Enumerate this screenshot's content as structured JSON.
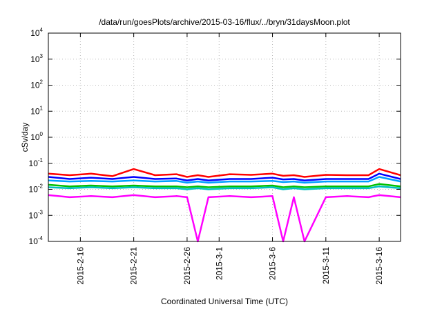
{
  "chart_data": {
    "type": "line",
    "title": "/data/run/goesPlots/archive/2015-03-16/flux/../bryn/31daysMoon.plot",
    "xlabel": "Coordinated Universal Time (UTC)",
    "ylabel": "cSv/day",
    "yscale": "log",
    "ylim": [
      0.0001,
      10000
    ],
    "xlim": [
      "2015-02-13",
      "2015-03-18"
    ],
    "grid": true,
    "legend": "none",
    "y_ticks": [
      {
        "base": "10",
        "exp": "-4",
        "value": 0.0001
      },
      {
        "base": "10",
        "exp": "-3",
        "value": 0.001
      },
      {
        "base": "10",
        "exp": "-2",
        "value": 0.01
      },
      {
        "base": "10",
        "exp": "-1",
        "value": 0.1
      },
      {
        "base": "10",
        "exp": "0",
        "value": 1
      },
      {
        "base": "10",
        "exp": "1",
        "value": 10
      },
      {
        "base": "10",
        "exp": "2",
        "value": 100
      },
      {
        "base": "10",
        "exp": "3",
        "value": 1000
      },
      {
        "base": "10",
        "exp": "4",
        "value": 10000
      }
    ],
    "x_ticks": [
      "2015-2-16",
      "2015-2-21",
      "2015-2-26",
      "2015-3-1",
      "2015-3-6",
      "2015-3-11",
      "2015-3-16"
    ],
    "x": [
      "2015-02-13",
      "2015-02-15",
      "2015-02-17",
      "2015-02-19",
      "2015-02-21",
      "2015-02-23",
      "2015-02-25",
      "2015-02-26",
      "2015-02-27",
      "2015-02-28",
      "2015-03-02",
      "2015-03-04",
      "2015-03-06",
      "2015-03-07",
      "2015-03-08",
      "2015-03-09",
      "2015-03-11",
      "2015-03-13",
      "2015-03-15",
      "2015-03-16",
      "2015-03-18"
    ],
    "series": [
      {
        "color": "#ff0000",
        "values": [
          0.04,
          0.035,
          0.04,
          0.032,
          0.06,
          0.035,
          0.038,
          0.03,
          0.035,
          0.03,
          0.038,
          0.036,
          0.04,
          0.033,
          0.035,
          0.03,
          0.036,
          0.035,
          0.035,
          0.06,
          0.035
        ]
      },
      {
        "color": "#0000ff",
        "values": [
          0.03,
          0.025,
          0.028,
          0.025,
          0.03,
          0.025,
          0.026,
          0.022,
          0.025,
          0.022,
          0.025,
          0.025,
          0.028,
          0.024,
          0.025,
          0.022,
          0.025,
          0.025,
          0.025,
          0.04,
          0.025
        ]
      },
      {
        "color": "#00a0ff",
        "values": [
          0.022,
          0.02,
          0.021,
          0.02,
          0.022,
          0.02,
          0.021,
          0.018,
          0.02,
          0.018,
          0.02,
          0.02,
          0.021,
          0.019,
          0.02,
          0.018,
          0.02,
          0.02,
          0.02,
          0.03,
          0.02
        ]
      },
      {
        "color": "#00c000",
        "values": [
          0.015,
          0.013,
          0.014,
          0.013,
          0.014,
          0.013,
          0.013,
          0.012,
          0.013,
          0.012,
          0.013,
          0.013,
          0.014,
          0.012,
          0.013,
          0.012,
          0.013,
          0.013,
          0.013,
          0.016,
          0.013
        ]
      },
      {
        "color": "#00c0c0",
        "values": [
          0.012,
          0.011,
          0.012,
          0.011,
          0.012,
          0.011,
          0.011,
          0.01,
          0.011,
          0.01,
          0.011,
          0.011,
          0.012,
          0.01,
          0.011,
          0.01,
          0.011,
          0.011,
          0.011,
          0.013,
          0.011
        ]
      },
      {
        "color": "#ff00ff",
        "values": [
          0.006,
          0.005,
          0.0055,
          0.005,
          0.006,
          0.005,
          0.0055,
          0.005,
          0.0001,
          0.005,
          0.0055,
          0.005,
          0.0055,
          0.0001,
          0.005,
          0.0001,
          0.005,
          0.0055,
          0.005,
          0.006,
          0.005
        ]
      }
    ]
  }
}
